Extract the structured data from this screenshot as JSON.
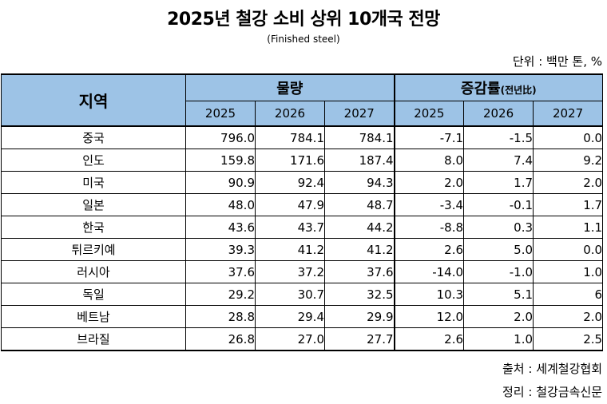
{
  "title": "2025년 철강 소비 상위 10개국 전망",
  "subtitle": "(Finished steel)",
  "unit": "단위 : 백만 톤, %",
  "header": {
    "region": "지역",
    "volume": "물량",
    "change": "증감률",
    "change_suffix": "(전년比)",
    "years": [
      "2025",
      "2026",
      "2027"
    ]
  },
  "rows": [
    {
      "region": "중국",
      "v2025": "796.0",
      "v2026": "784.1",
      "v2027": "784.1",
      "c2025": "-7.1",
      "c2026": "-1.5",
      "c2027": "0.0"
    },
    {
      "region": "인도",
      "v2025": "159.8",
      "v2026": "171.6",
      "v2027": "187.4",
      "c2025": "8.0",
      "c2026": "7.4",
      "c2027": "9.2"
    },
    {
      "region": "미국",
      "v2025": "90.9",
      "v2026": "92.4",
      "v2027": "94.3",
      "c2025": "2.0",
      "c2026": "1.7",
      "c2027": "2.0"
    },
    {
      "region": "일본",
      "v2025": "48.0",
      "v2026": "47.9",
      "v2027": "48.7",
      "c2025": "-3.4",
      "c2026": "-0.1",
      "c2027": "1.7"
    },
    {
      "region": "한국",
      "v2025": "43.6",
      "v2026": "43.7",
      "v2027": "44.2",
      "c2025": "-8.8",
      "c2026": "0.3",
      "c2027": "1.1"
    },
    {
      "region": "튀르키예",
      "v2025": "39.3",
      "v2026": "41.2",
      "v2027": "41.2",
      "c2025": "2.6",
      "c2026": "5.0",
      "c2027": "0.0"
    },
    {
      "region": "러시아",
      "v2025": "37.6",
      "v2026": "37.2",
      "v2027": "37.6",
      "c2025": "-14.0",
      "c2026": "-1.0",
      "c2027": "1.0"
    },
    {
      "region": "독일",
      "v2025": "29.2",
      "v2026": "30.7",
      "v2027": "32.5",
      "c2025": "10.3",
      "c2026": "5.1",
      "c2027": "6"
    },
    {
      "region": "베트남",
      "v2025": "28.8",
      "v2026": "29.4",
      "v2027": "29.9",
      "c2025": "12.0",
      "c2026": "2.0",
      "c2027": "2.0"
    },
    {
      "region": "브라질",
      "v2025": "26.8",
      "v2026": "27.0",
      "v2027": "27.7",
      "c2025": "2.6",
      "c2026": "1.0",
      "c2027": "2.5"
    }
  ],
  "source": "출처 : 세계철강협회",
  "editor": "정리 : 철강금속신문",
  "colors": {
    "header_bg": "#9dc3e6"
  }
}
